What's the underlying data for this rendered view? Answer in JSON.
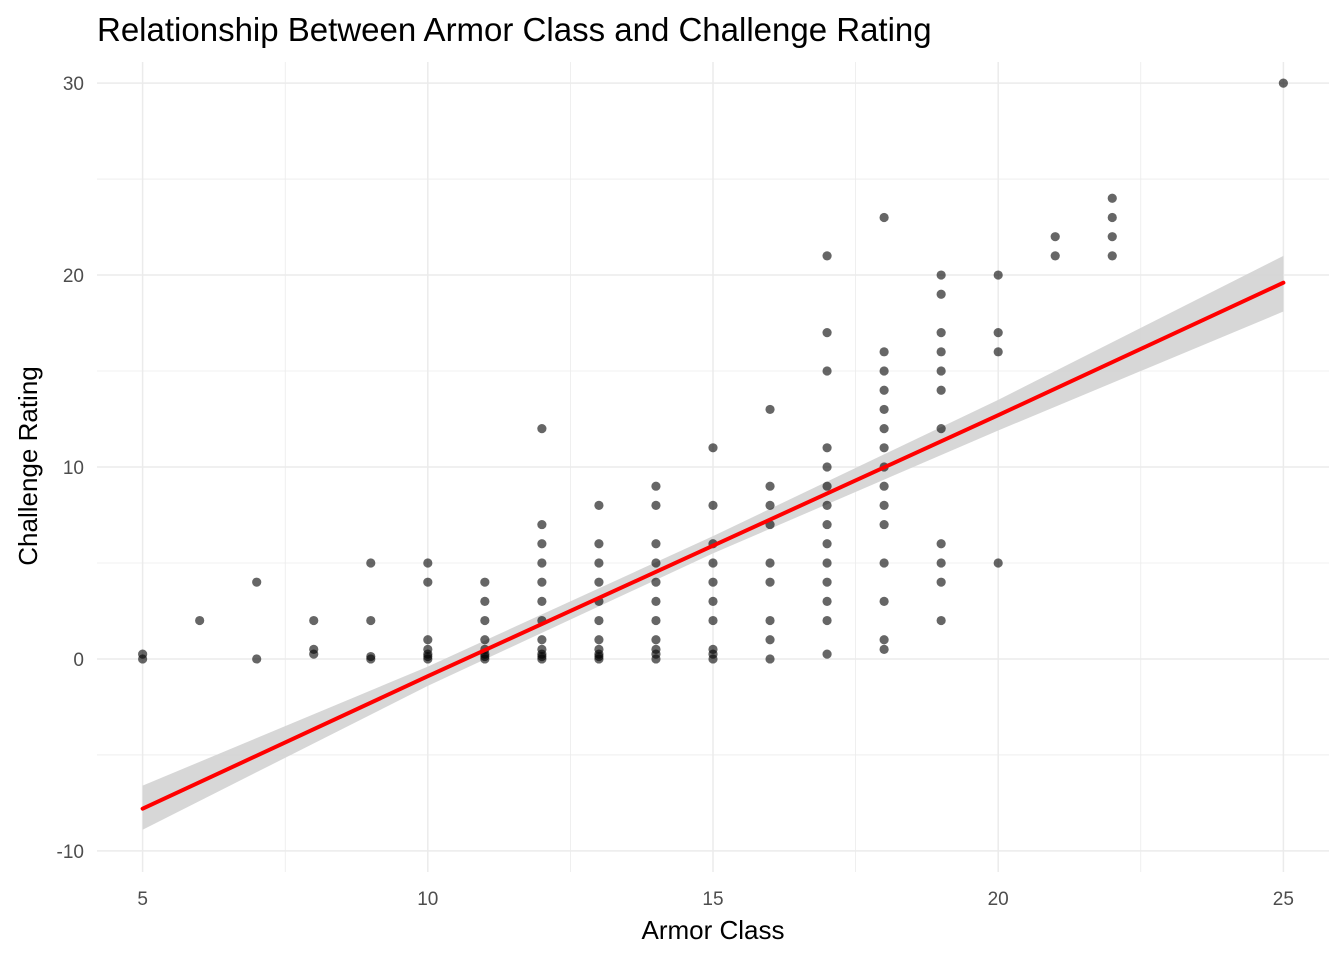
{
  "chart_data": {
    "type": "scatter",
    "title": "Relationship Between Armor Class and Challenge Rating",
    "xlabel": "Armor Class",
    "ylabel": "Challenge Rating",
    "xlim": [
      4.2,
      25.8
    ],
    "ylim": [
      -11.1,
      31.1
    ],
    "x_ticks": [
      5,
      10,
      15,
      20,
      25
    ],
    "x_tick_labels": [
      "5",
      "10",
      "15",
      "20",
      "25"
    ],
    "y_ticks": [
      -10,
      0,
      10,
      20,
      30
    ],
    "y_tick_labels": [
      "-10",
      "0",
      "10",
      "20",
      "30"
    ],
    "grid": true,
    "legend": "none",
    "colors": {
      "points": "#000000",
      "trend": "#ff0000",
      "band": "#d3d3d3",
      "grid": "#ebebeb"
    },
    "series": [
      {
        "kind": "points",
        "points": [
          [
            5,
            0
          ],
          [
            5,
            0.25
          ],
          [
            6,
            2
          ],
          [
            7,
            4
          ],
          [
            7,
            0
          ],
          [
            8,
            2
          ],
          [
            8,
            0.5
          ],
          [
            8,
            0.25
          ],
          [
            9,
            5
          ],
          [
            9,
            2
          ],
          [
            9,
            0.125
          ],
          [
            9,
            0
          ],
          [
            10,
            5
          ],
          [
            10,
            4
          ],
          [
            10,
            1
          ],
          [
            10,
            0.5
          ],
          [
            10,
            0.25
          ],
          [
            10,
            0.125
          ],
          [
            10,
            0
          ],
          [
            11,
            4
          ],
          [
            11,
            3
          ],
          [
            11,
            2
          ],
          [
            11,
            1
          ],
          [
            11,
            0.5
          ],
          [
            11,
            0.25
          ],
          [
            11,
            0.125
          ],
          [
            11,
            0
          ],
          [
            12,
            12
          ],
          [
            12,
            7
          ],
          [
            12,
            6
          ],
          [
            12,
            5
          ],
          [
            12,
            4
          ],
          [
            12,
            3
          ],
          [
            12,
            2
          ],
          [
            12,
            1
          ],
          [
            12,
            0.5
          ],
          [
            12,
            0.25
          ],
          [
            12,
            0.125
          ],
          [
            12,
            0
          ],
          [
            13,
            8
          ],
          [
            13,
            6
          ],
          [
            13,
            5
          ],
          [
            13,
            4
          ],
          [
            13,
            3
          ],
          [
            13,
            2
          ],
          [
            13,
            1
          ],
          [
            13,
            0.5
          ],
          [
            13,
            0.25
          ],
          [
            13,
            0.125
          ],
          [
            13,
            0
          ],
          [
            14,
            9
          ],
          [
            14,
            8
          ],
          [
            14,
            6
          ],
          [
            14,
            5
          ],
          [
            14,
            4
          ],
          [
            14,
            3
          ],
          [
            14,
            2
          ],
          [
            14,
            1
          ],
          [
            14,
            0.5
          ],
          [
            14,
            0.25
          ],
          [
            14,
            0
          ],
          [
            15,
            11
          ],
          [
            15,
            8
          ],
          [
            15,
            6
          ],
          [
            15,
            5
          ],
          [
            15,
            4
          ],
          [
            15,
            3
          ],
          [
            15,
            2
          ],
          [
            15,
            0.5
          ],
          [
            15,
            0.25
          ],
          [
            15,
            0
          ],
          [
            16,
            13
          ],
          [
            16,
            9
          ],
          [
            16,
            8
          ],
          [
            16,
            7
          ],
          [
            16,
            5
          ],
          [
            16,
            4
          ],
          [
            16,
            2
          ],
          [
            16,
            1
          ],
          [
            16,
            0
          ],
          [
            17,
            21
          ],
          [
            17,
            17
          ],
          [
            17,
            15
          ],
          [
            17,
            11
          ],
          [
            17,
            10
          ],
          [
            17,
            9
          ],
          [
            17,
            8
          ],
          [
            17,
            7
          ],
          [
            17,
            6
          ],
          [
            17,
            5
          ],
          [
            17,
            4
          ],
          [
            17,
            3
          ],
          [
            17,
            2
          ],
          [
            17,
            0.25
          ],
          [
            18,
            23
          ],
          [
            18,
            16
          ],
          [
            18,
            15
          ],
          [
            18,
            14
          ],
          [
            18,
            13
          ],
          [
            18,
            12
          ],
          [
            18,
            11
          ],
          [
            18,
            10
          ],
          [
            18,
            9
          ],
          [
            18,
            8
          ],
          [
            18,
            7
          ],
          [
            18,
            5
          ],
          [
            18,
            3
          ],
          [
            18,
            1
          ],
          [
            18,
            0.5
          ],
          [
            19,
            20
          ],
          [
            19,
            19
          ],
          [
            19,
            17
          ],
          [
            19,
            16
          ],
          [
            19,
            15
          ],
          [
            19,
            14
          ],
          [
            19,
            12
          ],
          [
            19,
            6
          ],
          [
            19,
            5
          ],
          [
            19,
            4
          ],
          [
            19,
            2
          ],
          [
            20,
            20
          ],
          [
            20,
            17
          ],
          [
            20,
            16
          ],
          [
            20,
            5
          ],
          [
            21,
            22
          ],
          [
            21,
            21
          ],
          [
            22,
            24
          ],
          [
            22,
            23
          ],
          [
            22,
            22
          ],
          [
            22,
            21
          ],
          [
            25,
            30
          ]
        ]
      },
      {
        "kind": "linear_fit",
        "x": [
          5,
          10,
          15,
          20,
          25
        ],
        "y": [
          -7.8,
          -0.9,
          5.9,
          12.7,
          19.6
        ],
        "ci_lower": [
          -8.9,
          -1.4,
          5.5,
          11.9,
          18.1
        ],
        "ci_upper": [
          -6.6,
          -0.4,
          6.4,
          13.5,
          21.0
        ]
      }
    ]
  }
}
